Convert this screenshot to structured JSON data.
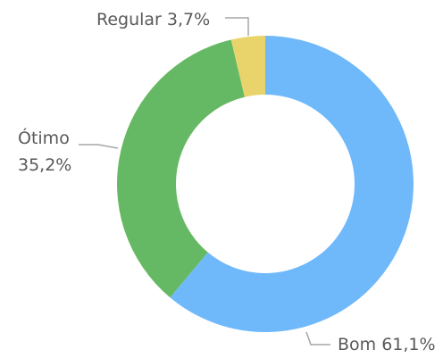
{
  "chart_data": {
    "type": "donut",
    "categories": [
      "Bom",
      "Ótimo",
      "Regular"
    ],
    "values": [
      61.1,
      35.2,
      3.7
    ],
    "value_labels": [
      "61,1%",
      "35,2%",
      "3,7%"
    ],
    "colors": [
      "#6fb9fb",
      "#66b964",
      "#e8d46b"
    ]
  }
}
